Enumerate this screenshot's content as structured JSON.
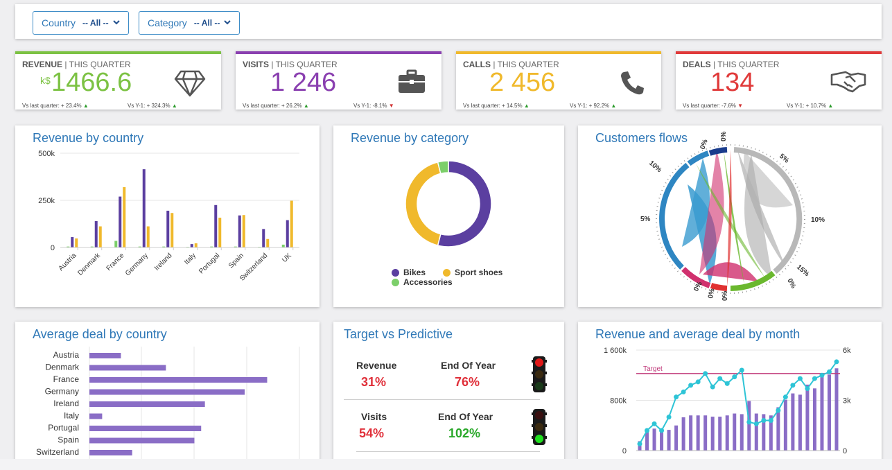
{
  "filters": [
    {
      "label": "Country",
      "value": "-- All --"
    },
    {
      "label": "Category",
      "value": "-- All --"
    }
  ],
  "kpis": [
    {
      "title": "REVENUE",
      "period": "| THIS QUARTER",
      "unit": "k$",
      "value": "1466.6",
      "color": "#7cc243",
      "vs_last": "Vs last quarter: + 23.4%",
      "vs_last_trend": "up",
      "vs_year": "Vs Y-1: + 324.3%",
      "vs_year_trend": "up",
      "icon": "diamond-icon"
    },
    {
      "title": "VISITS",
      "period": "| THIS QUARTER",
      "unit": "",
      "value": "1 246",
      "color": "#8a3fb0",
      "vs_last": "Vs last quarter: + 26.2%",
      "vs_last_trend": "up",
      "vs_year": "Vs Y-1: -8.1%",
      "vs_year_trend": "down",
      "icon": "briefcase-icon"
    },
    {
      "title": "CALLS",
      "period": "| THIS QUARTER",
      "unit": "",
      "value": "2 456",
      "color": "#f0b92c",
      "vs_last": "Vs last quarter: + 14.5%",
      "vs_last_trend": "up",
      "vs_year": "Vs Y-1: + 92.2%",
      "vs_year_trend": "up",
      "icon": "phone-icon"
    },
    {
      "title": "DEALS",
      "period": "| THIS QUARTER",
      "unit": "",
      "value": "134",
      "color": "#e03a3a",
      "vs_last": "Vs last quarter: -7.6%",
      "vs_last_trend": "down",
      "vs_year": "Vs Y-1: + 10.7%",
      "vs_year_trend": "up",
      "icon": "handshake-icon"
    }
  ],
  "trend_up_glyph": "▲",
  "trend_down_glyph": "▼",
  "panels": {
    "revenue_by_country": "Revenue by country",
    "revenue_by_category": "Revenue by category",
    "customers_flows": "Customers flows",
    "average_deal": "Average deal by country",
    "target_vs_predictive": "Target vs Predictive",
    "revenue_avg_month": "Revenue and average deal by month"
  },
  "chart_data": [
    {
      "type": "bar",
      "title": "Revenue by country",
      "categories": [
        "Austria",
        "Denmark",
        "France",
        "Germany",
        "Ireland",
        "Italy",
        "Portugal",
        "Spain",
        "Switzerland",
        "UK"
      ],
      "series": [
        {
          "name": "Accessories",
          "color": "#7ccf6a",
          "values": [
            5,
            5,
            35,
            5,
            5,
            3,
            5,
            5,
            3,
            15
          ]
        },
        {
          "name": "Bikes",
          "color": "#5b3fa0",
          "values": [
            55,
            140,
            270,
            415,
            195,
            18,
            225,
            170,
            98,
            145
          ]
        },
        {
          "name": "Sport shoes",
          "color": "#f0b92c",
          "values": [
            48,
            112,
            320,
            112,
            183,
            22,
            158,
            172,
            45,
            248
          ]
        }
      ],
      "yticks": [
        "500k",
        "250k",
        "0"
      ],
      "ylim": [
        0,
        500
      ]
    },
    {
      "type": "pie",
      "title": "Revenue by category",
      "labels": [
        "Bikes",
        "Sport shoes",
        "Accessories"
      ],
      "values": [
        54,
        42,
        4
      ],
      "colors": [
        "#5b3fa0",
        "#f0b92c",
        "#7ccf6a"
      ]
    },
    {
      "type": "other",
      "title": "Customers flows",
      "tick_labels": [
        "0%",
        "5%",
        "10%",
        "15%",
        "0%",
        "0%",
        "0%",
        "0%",
        "5%",
        "10%",
        "0%"
      ]
    },
    {
      "type": "bar",
      "title": "Average deal by country",
      "categories": [
        "Austria",
        "Denmark",
        "France",
        "Germany",
        "Ireland",
        "Italy",
        "Portugal",
        "Spain",
        "Switzerland"
      ],
      "values": [
        42,
        102,
        237,
        207,
        154,
        17,
        149,
        140,
        57
      ],
      "color": "#8a6dc6"
    },
    {
      "type": "line",
      "title": "Revenue and average deal by month",
      "target_label": "Target",
      "target_value": 4.6,
      "y_left_ticks": [
        "1 600k",
        "800k",
        "0"
      ],
      "y_right_ticks": [
        "6k",
        "3k",
        "0"
      ],
      "bars": [
        150,
        300,
        350,
        300,
        330,
        400,
        530,
        560,
        560,
        560,
        540,
        540,
        560,
        590,
        580,
        790,
        590,
        580,
        560,
        690,
        810,
        910,
        890,
        1050,
        990,
        1180,
        1210,
        1310
      ],
      "line": [
        0.4,
        1.2,
        1.6,
        1.2,
        2.0,
        3.2,
        3.5,
        3.9,
        4.1,
        4.6,
        3.8,
        4.3,
        4.0,
        4.4,
        4.8,
        1.7,
        1.6,
        1.8,
        1.8,
        2.4,
        3.2,
        3.9,
        4.3,
        3.7,
        4.3,
        4.5,
        4.7,
        5.3
      ]
    }
  ],
  "target_vs_predictive": {
    "rows": [
      {
        "name": "Revenue",
        "value": "31%",
        "value_color": "#e0303a",
        "eoy_label": "End Of Year",
        "eoy_value": "76%",
        "eoy_color": "#e0303a",
        "light": "red"
      },
      {
        "name": "Visits",
        "value": "54%",
        "value_color": "#e0303a",
        "eoy_label": "End Of Year",
        "eoy_value": "102%",
        "eoy_color": "#2aa82a",
        "light": "green"
      }
    ]
  }
}
